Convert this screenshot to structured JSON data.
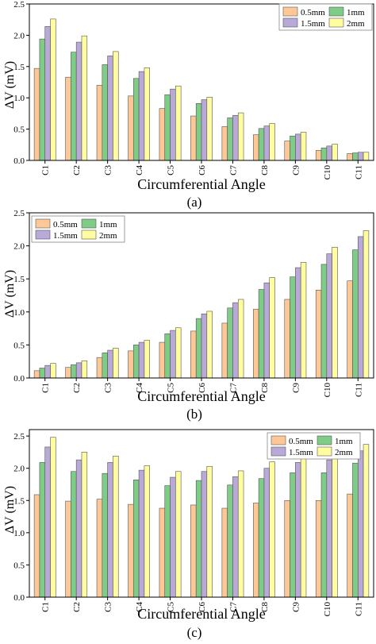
{
  "colors": {
    "0.5mm": "#FDC896",
    "1mm": "#7FCC86",
    "1.5mm": "#B9A9D9",
    "2mm": "#FFFDA0"
  },
  "chart_data": [
    {
      "type": "bar",
      "caption": "(a)",
      "categories": [
        "C1",
        "C2",
        "C3",
        "C4",
        "C5",
        "C6",
        "C7",
        "C8",
        "C9",
        "C10",
        "C11"
      ],
      "series": [
        {
          "name": "0.5mm",
          "values": [
            1.47,
            1.33,
            1.2,
            1.03,
            0.83,
            0.71,
            0.54,
            0.41,
            0.31,
            0.16,
            0.11
          ]
        },
        {
          "name": "1mm",
          "values": [
            1.94,
            1.73,
            1.53,
            1.31,
            1.05,
            0.91,
            0.68,
            0.51,
            0.39,
            0.2,
            0.12
          ]
        },
        {
          "name": "1.5mm",
          "values": [
            2.14,
            1.89,
            1.67,
            1.42,
            1.14,
            0.97,
            0.72,
            0.55,
            0.42,
            0.23,
            0.13
          ]
        },
        {
          "name": "2mm",
          "values": [
            2.26,
            1.99,
            1.74,
            1.48,
            1.19,
            1.01,
            0.76,
            0.59,
            0.45,
            0.26,
            0.13
          ]
        }
      ],
      "xlabel": "Circumferential Angle",
      "ylabel": "ΔV (mV)",
      "ylim": [
        0,
        2.5
      ],
      "yticks": [
        "0.0",
        "0.5",
        "1.0",
        "1.5",
        "2.0",
        "2.5"
      ],
      "legend_position": "top-right"
    },
    {
      "type": "bar",
      "caption": "(b)",
      "categories": [
        "C1",
        "C2",
        "C3",
        "C4",
        "C5",
        "C6",
        "C7",
        "C8",
        "C9",
        "C10",
        "C11"
      ],
      "series": [
        {
          "name": "0.5mm",
          "values": [
            0.11,
            0.16,
            0.31,
            0.41,
            0.54,
            0.71,
            0.83,
            1.04,
            1.19,
            1.33,
            1.47
          ]
        },
        {
          "name": "1mm",
          "values": [
            0.15,
            0.2,
            0.38,
            0.5,
            0.67,
            0.9,
            1.06,
            1.34,
            1.53,
            1.72,
            1.94
          ]
        },
        {
          "name": "1.5mm",
          "values": [
            0.19,
            0.23,
            0.42,
            0.54,
            0.72,
            0.97,
            1.14,
            1.44,
            1.67,
            1.88,
            2.14
          ]
        },
        {
          "name": "2mm",
          "values": [
            0.22,
            0.26,
            0.45,
            0.57,
            0.76,
            1.01,
            1.19,
            1.52,
            1.75,
            1.98,
            2.23
          ]
        }
      ],
      "xlabel": "Circumferential Angle",
      "ylabel": "ΔV (mV)",
      "ylim": [
        0,
        2.5
      ],
      "yticks": [
        "0.0",
        "0.5",
        "1.0",
        "1.5",
        "2.0",
        "2.5"
      ],
      "legend_position": "top-left"
    },
    {
      "type": "bar",
      "caption": "(c)",
      "categories": [
        "C1",
        "C2",
        "C3",
        "C4",
        "C5",
        "C6",
        "C7",
        "C8",
        "C9",
        "C10",
        "C11"
      ],
      "series": [
        {
          "name": "0.5mm",
          "values": [
            1.59,
            1.49,
            1.52,
            1.44,
            1.38,
            1.43,
            1.38,
            1.46,
            1.5,
            1.5,
            1.6
          ]
        },
        {
          "name": "1mm",
          "values": [
            2.09,
            1.95,
            1.92,
            1.82,
            1.73,
            1.81,
            1.74,
            1.84,
            1.93,
            1.93,
            2.08
          ]
        },
        {
          "name": "1.5mm",
          "values": [
            2.33,
            2.13,
            2.09,
            1.97,
            1.86,
            1.95,
            1.87,
            2.0,
            2.09,
            2.13,
            2.27
          ]
        },
        {
          "name": "2mm",
          "values": [
            2.48,
            2.25,
            2.19,
            2.04,
            1.95,
            2.03,
            1.96,
            2.1,
            2.2,
            2.24,
            2.37
          ]
        }
      ],
      "xlabel": "Circumferential Angle",
      "ylabel": "ΔV (mV)",
      "ylim": [
        0,
        2.6
      ],
      "yticks": [
        "0.0",
        "0.5",
        "1.0",
        "1.5",
        "2.0",
        "2.5"
      ],
      "legend_position": "top-right"
    }
  ]
}
